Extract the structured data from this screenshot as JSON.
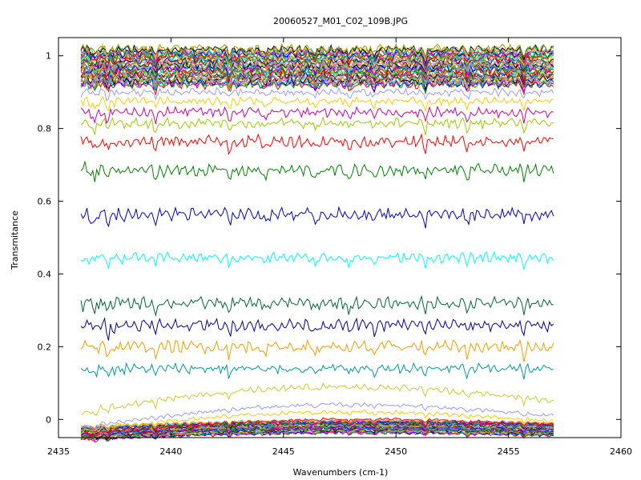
{
  "chart_data": {
    "type": "line",
    "title": "20060527_M01_C02_109B.JPG",
    "xlabel": "Wavenumbers (cm-1)",
    "ylabel": "Transmitance",
    "xlim": [
      2435,
      2460
    ],
    "ylim": [
      -0.05,
      1.05
    ],
    "x_ticks": [
      2435,
      2440,
      2445,
      2450,
      2455,
      2460
    ],
    "x_tick_labels": [
      "2435",
      "2440",
      "2445",
      "2450",
      "2455",
      "2460"
    ],
    "y_ticks": [
      0,
      0.2,
      0.4,
      0.6,
      0.8,
      1
    ],
    "y_tick_labels": [
      "0",
      "0.2",
      "0.4",
      "0.6",
      "0.8",
      "1"
    ],
    "grid": false,
    "legend": "none",
    "data_x_range": [
      2436,
      2457
    ],
    "absorption_lines": [
      2436.6,
      2437.2,
      2439.3,
      2442.6,
      2444.2,
      2446.4,
      2447.9,
      2449.0,
      2451.3,
      2453.2,
      2455.7
    ],
    "series": [
      {
        "color": "#008000",
        "mean": 0.685,
        "noise": 0.012
      },
      {
        "color": "#0000cc",
        "mean": 0.565,
        "noise": 0.012
      },
      {
        "color": "#00ffff",
        "mean": 0.445,
        "noise": 0.01
      },
      {
        "color": "#006633",
        "mean": 0.32,
        "noise": 0.012
      },
      {
        "color": "#000099",
        "mean": 0.26,
        "noise": 0.012
      },
      {
        "color": "#ff9900",
        "mean": 0.2,
        "noise": 0.012
      },
      {
        "color": "#009999",
        "mean": 0.14,
        "noise": 0.01
      },
      {
        "color": "#ff0000",
        "mean": 0.765,
        "noise": 0.012
      },
      {
        "color": "#99cc00",
        "mean": 0.815,
        "noise": 0.01
      },
      {
        "color": "#cc0099",
        "mean": 0.845,
        "noise": 0.01
      },
      {
        "color": "#ffcc00",
        "mean": 0.875,
        "noise": 0.008
      },
      {
        "color": "#9999ff",
        "mean": 0.9,
        "noise": 0.008
      },
      {
        "color": "#cccc33",
        "mean_start": 0.02,
        "mean_end": 0.05,
        "mean_peak": 0.09,
        "noise": 0.006
      },
      {
        "color": "#9999ff",
        "mean_start": -0.02,
        "mean_end": 0.01,
        "mean_peak": 0.04,
        "noise": 0.004
      },
      {
        "color": "#ffcc00",
        "mean_start": -0.03,
        "mean_end": -0.005,
        "mean_peak": 0.02,
        "noise": 0.004
      },
      {
        "color": "#ff0000",
        "mean_start": -0.04,
        "mean_end": -0.015,
        "mean_peak": 0.0,
        "noise": 0.003
      }
    ],
    "dense_top_band": {
      "range": [
        0.92,
        1.02
      ],
      "count": 40,
      "colors": [
        "#ff0000",
        "#00aa00",
        "#0000ff",
        "#ff00ff",
        "#00cccc",
        "#ffaa00",
        "#000000",
        "#999900",
        "#9999ff",
        "#ff6699",
        "#006600",
        "#660066",
        "#3399ff",
        "#ffcc00",
        "#cc0000",
        "#00ff99"
      ]
    },
    "dense_bottom_band": {
      "range": [
        -0.045,
        -0.01
      ],
      "count": 30,
      "colors": [
        "#ff0000",
        "#00aa00",
        "#0000ff",
        "#ff00ff",
        "#00cccc",
        "#ffaa00",
        "#000000",
        "#999900",
        "#9999ff",
        "#006600",
        "#660066",
        "#3399ff"
      ]
    }
  }
}
